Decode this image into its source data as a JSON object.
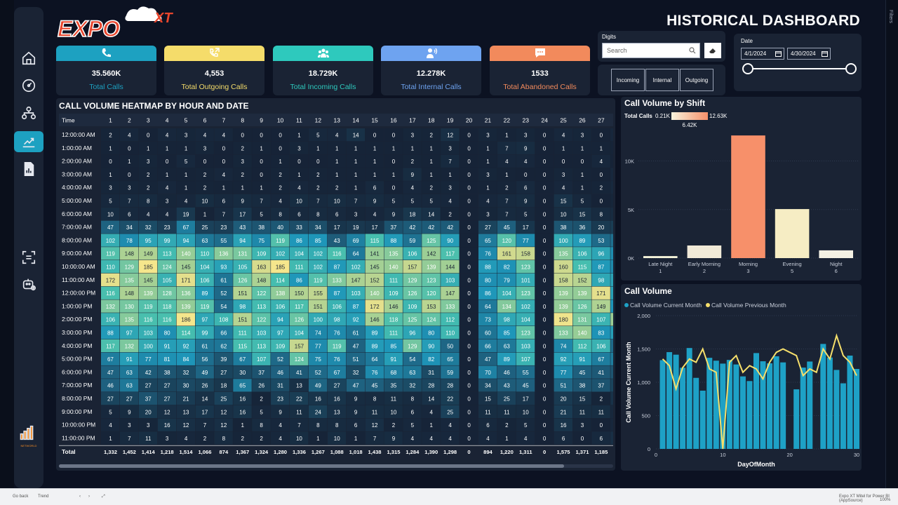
{
  "header": {
    "title": "HISTORICAL DASHBOARD",
    "logo_text": "EXPO",
    "logo_sup": "XT"
  },
  "nav": {
    "items": [
      "home-icon",
      "gauge-icon",
      "org-chart-icon",
      "analytics-icon",
      "report-icon",
      "scan-icon",
      "bot-icon"
    ],
    "brand": "NETWORLD"
  },
  "kpis": [
    {
      "value": "35.560K",
      "label": "Total Calls",
      "color": "#1da1c1",
      "icon": "phone-icon"
    },
    {
      "value": "4,553",
      "label": "Total Outgoing Calls",
      "color": "#f5dc6a",
      "icon": "phone-outgoing-icon"
    },
    {
      "value": "18.729K",
      "label": "Total Incoming Calls",
      "color": "#2ec9bd",
      "icon": "group-icon"
    },
    {
      "value": "12.278K",
      "label": "Total Internal Calls",
      "color": "#6ea3f0",
      "icon": "person-speaking-icon"
    },
    {
      "value": "1533",
      "label": "Total Abandoned Calls",
      "color": "#f28a5c",
      "icon": "chat-icon"
    }
  ],
  "digits": {
    "title": "Digits",
    "search_placeholder": "Search"
  },
  "direction_buttons": [
    "Incoming",
    "Internal",
    "Outgoing"
  ],
  "date_filter": {
    "title": "Date",
    "start": "4/1/2024",
    "end": "4/30/2024"
  },
  "heatmap": {
    "title": "CALL VOLUME HEATMAP BY HOUR AND DATE",
    "corner": "Time",
    "days": [
      "1",
      "2",
      "3",
      "4",
      "5",
      "6",
      "7",
      "8",
      "9",
      "10",
      "11",
      "12",
      "13",
      "14",
      "15",
      "16",
      "17",
      "18",
      "19",
      "20",
      "21",
      "22",
      "23",
      "24",
      "25",
      "26",
      "27",
      "28",
      "29"
    ],
    "rows": [
      {
        "time": "12:00:00 AM",
        "v": [
          "2",
          "4",
          "0",
          "4",
          "3",
          "4",
          "4",
          "0",
          "0",
          "0",
          "1",
          "5",
          "4",
          "14",
          "0",
          "0",
          "3",
          "2",
          "12",
          "0",
          "3",
          "1",
          "3",
          "0",
          "4",
          "3",
          "0",
          "4",
          ""
        ]
      },
      {
        "time": "1:00:00 AM",
        "v": [
          "1",
          "0",
          "1",
          "1",
          "1",
          "3",
          "0",
          "2",
          "1",
          "0",
          "3",
          "1",
          "1",
          "1",
          "1",
          "1",
          "1",
          "1",
          "3",
          "0",
          "1",
          "7",
          "9",
          "0",
          "1",
          "1",
          "1",
          "1",
          ""
        ]
      },
      {
        "time": "2:00:00 AM",
        "v": [
          "0",
          "1",
          "3",
          "0",
          "5",
          "0",
          "0",
          "3",
          "0",
          "1",
          "0",
          "0",
          "1",
          "1",
          "1",
          "0",
          "2",
          "1",
          "7",
          "0",
          "1",
          "4",
          "4",
          "0",
          "0",
          "0",
          "4",
          "0",
          ""
        ]
      },
      {
        "time": "3:00:00 AM",
        "v": [
          "1",
          "0",
          "2",
          "1",
          "1",
          "2",
          "4",
          "2",
          "0",
          "2",
          "1",
          "2",
          "1",
          "1",
          "1",
          "1",
          "9",
          "1",
          "1",
          "0",
          "3",
          "1",
          "0",
          "0",
          "3",
          "1",
          "0",
          "5",
          ""
        ]
      },
      {
        "time": "4:00:00 AM",
        "v": [
          "3",
          "3",
          "2",
          "4",
          "1",
          "2",
          "1",
          "1",
          "1",
          "2",
          "4",
          "2",
          "2",
          "1",
          "6",
          "0",
          "4",
          "2",
          "3",
          "0",
          "1",
          "2",
          "6",
          "0",
          "4",
          "1",
          "2",
          "6",
          ""
        ]
      },
      {
        "time": "5:00:00 AM",
        "v": [
          "5",
          "7",
          "8",
          "3",
          "4",
          "10",
          "6",
          "9",
          "7",
          "4",
          "10",
          "7",
          "10",
          "7",
          "9",
          "5",
          "5",
          "5",
          "4",
          "0",
          "4",
          "7",
          "9",
          "0",
          "15",
          "5",
          "0",
          "3",
          ""
        ]
      },
      {
        "time": "6:00:00 AM",
        "v": [
          "10",
          "6",
          "4",
          "4",
          "19",
          "1",
          "7",
          "17",
          "5",
          "8",
          "6",
          "8",
          "6",
          "3",
          "4",
          "9",
          "18",
          "14",
          "2",
          "0",
          "3",
          "7",
          "5",
          "0",
          "10",
          "15",
          "8",
          "8",
          ""
        ]
      },
      {
        "time": "7:00:00 AM",
        "v": [
          "47",
          "34",
          "32",
          "23",
          "67",
          "25",
          "23",
          "43",
          "38",
          "40",
          "33",
          "34",
          "17",
          "19",
          "17",
          "37",
          "42",
          "42",
          "42",
          "0",
          "27",
          "45",
          "17",
          "0",
          "38",
          "36",
          "20",
          "22",
          ""
        ]
      },
      {
        "time": "8:00:00 AM",
        "v": [
          "102",
          "78",
          "95",
          "99",
          "94",
          "63",
          "55",
          "94",
          "75",
          "119",
          "86",
          "85",
          "43",
          "69",
          "115",
          "88",
          "59",
          "125",
          "90",
          "0",
          "65",
          "120",
          "77",
          "0",
          "100",
          "89",
          "53",
          "57",
          ""
        ]
      },
      {
        "time": "9:00:00 AM",
        "v": [
          "119",
          "148",
          "149",
          "113",
          "140",
          "110",
          "136",
          "131",
          "109",
          "102",
          "104",
          "102",
          "116",
          "64",
          "141",
          "135",
          "106",
          "142",
          "117",
          "0",
          "76",
          "161",
          "158",
          "0",
          "135",
          "106",
          "96",
          "78",
          ""
        ]
      },
      {
        "time": "10:00:00 AM",
        "v": [
          "110",
          "129",
          "185",
          "124",
          "145",
          "104",
          "93",
          "105",
          "163",
          "185",
          "111",
          "102",
          "87",
          "102",
          "145",
          "140",
          "157",
          "139",
          "144",
          "0",
          "88",
          "82",
          "123",
          "0",
          "160",
          "115",
          "87",
          "76",
          ""
        ]
      },
      {
        "time": "11:00:00 AM",
        "v": [
          "172",
          "135",
          "145",
          "105",
          "171",
          "106",
          "61",
          "126",
          "148",
          "114",
          "86",
          "119",
          "133",
          "147",
          "152",
          "111",
          "129",
          "123",
          "103",
          "0",
          "80",
          "79",
          "101",
          "0",
          "158",
          "152",
          "98",
          "94",
          ""
        ]
      },
      {
        "time": "12:00:00 PM",
        "v": [
          "116",
          "148",
          "139",
          "128",
          "136",
          "89",
          "52",
          "151",
          "122",
          "138",
          "150",
          "155",
          "87",
          "103",
          "140",
          "109",
          "126",
          "120",
          "147",
          "0",
          "86",
          "104",
          "123",
          "0",
          "139",
          "139",
          "171",
          "93",
          ""
        ]
      },
      {
        "time": "1:00:00 PM",
        "v": [
          "132",
          "130",
          "119",
          "118",
          "139",
          "119",
          "54",
          "98",
          "113",
          "106",
          "117",
          "151",
          "106",
          "87",
          "172",
          "146",
          "109",
          "153",
          "133",
          "0",
          "64",
          "134",
          "102",
          "0",
          "139",
          "126",
          "149",
          "84",
          ""
        ]
      },
      {
        "time": "2:00:00 PM",
        "v": [
          "106",
          "135",
          "116",
          "116",
          "186",
          "97",
          "108",
          "151",
          "122",
          "94",
          "126",
          "100",
          "98",
          "92",
          "146",
          "118",
          "125",
          "124",
          "112",
          "0",
          "73",
          "98",
          "104",
          "0",
          "180",
          "131",
          "107",
          "142",
          ""
        ]
      },
      {
        "time": "3:00:00 PM",
        "v": [
          "88",
          "97",
          "103",
          "80",
          "114",
          "99",
          "66",
          "111",
          "103",
          "97",
          "104",
          "74",
          "76",
          "61",
          "89",
          "111",
          "96",
          "80",
          "110",
          "0",
          "60",
          "85",
          "123",
          "0",
          "133",
          "140",
          "83",
          "91",
          ""
        ]
      },
      {
        "time": "4:00:00 PM",
        "v": [
          "117",
          "132",
          "100",
          "91",
          "92",
          "61",
          "62",
          "115",
          "113",
          "109",
          "157",
          "77",
          "119",
          "47",
          "89",
          "85",
          "129",
          "90",
          "50",
          "0",
          "66",
          "63",
          "103",
          "0",
          "74",
          "112",
          "106",
          "54",
          ""
        ]
      },
      {
        "time": "5:00:00 PM",
        "v": [
          "67",
          "91",
          "77",
          "81",
          "84",
          "56",
          "39",
          "67",
          "107",
          "52",
          "124",
          "75",
          "76",
          "51",
          "64",
          "91",
          "54",
          "82",
          "65",
          "0",
          "47",
          "89",
          "107",
          "0",
          "92",
          "91",
          "67",
          "66",
          ""
        ]
      },
      {
        "time": "6:00:00 PM",
        "v": [
          "47",
          "63",
          "42",
          "38",
          "32",
          "49",
          "27",
          "30",
          "37",
          "46",
          "41",
          "52",
          "67",
          "32",
          "76",
          "68",
          "63",
          "31",
          "59",
          "0",
          "70",
          "46",
          "55",
          "0",
          "77",
          "45",
          "41",
          "38",
          ""
        ]
      },
      {
        "time": "7:00:00 PM",
        "v": [
          "46",
          "63",
          "27",
          "27",
          "30",
          "26",
          "18",
          "65",
          "26",
          "31",
          "13",
          "49",
          "27",
          "47",
          "45",
          "35",
          "32",
          "28",
          "28",
          "0",
          "34",
          "43",
          "45",
          "0",
          "51",
          "38",
          "37",
          "27",
          ""
        ]
      },
      {
        "time": "8:00:00 PM",
        "v": [
          "27",
          "27",
          "37",
          "27",
          "21",
          "14",
          "25",
          "16",
          "2",
          "23",
          "22",
          "16",
          "16",
          "9",
          "8",
          "11",
          "8",
          "14",
          "22",
          "0",
          "15",
          "25",
          "17",
          "0",
          "20",
          "15",
          "2",
          "15",
          ""
        ]
      },
      {
        "time": "9:00:00 PM",
        "v": [
          "5",
          "9",
          "20",
          "12",
          "13",
          "17",
          "12",
          "16",
          "5",
          "9",
          "11",
          "24",
          "13",
          "9",
          "11",
          "10",
          "6",
          "4",
          "25",
          "0",
          "11",
          "11",
          "10",
          "0",
          "21",
          "11",
          "11",
          "5",
          ""
        ]
      },
      {
        "time": "10:00:00 PM",
        "v": [
          "4",
          "3",
          "3",
          "16",
          "12",
          "7",
          "12",
          "1",
          "8",
          "4",
          "7",
          "8",
          "8",
          "6",
          "12",
          "2",
          "5",
          "1",
          "4",
          "0",
          "6",
          "2",
          "5",
          "0",
          "16",
          "3",
          "0",
          "4",
          ""
        ]
      },
      {
        "time": "11:00:00 PM",
        "v": [
          "1",
          "7",
          "11",
          "3",
          "4",
          "2",
          "8",
          "2",
          "2",
          "4",
          "10",
          "1",
          "10",
          "1",
          "7",
          "9",
          "4",
          "4",
          "4",
          "0",
          "4",
          "1",
          "4",
          "0",
          "6",
          "0",
          "6",
          "12",
          ""
        ]
      }
    ],
    "total_label": "Total",
    "totals": [
      "1,332",
      "1,452",
      "1,414",
      "1,218",
      "1,514",
      "1,066",
      "874",
      "1,367",
      "1,324",
      "1,280",
      "1,336",
      "1,267",
      "1,088",
      "1,018",
      "1,438",
      "1,315",
      "1,284",
      "1,390",
      "1,298",
      "0",
      "894",
      "1,220",
      "1,311",
      "0",
      "1,575",
      "1,371",
      "1,185",
      "984",
      "1,4"
    ]
  },
  "chart_data": [
    {
      "type": "bar",
      "title": "Call Volume by Shift",
      "legend_label": "Total Calls",
      "legend_min": "0.21K",
      "legend_max": "12.63K",
      "legend_mid": "6.42K",
      "categories": [
        "Late Night",
        "Early Morning",
        "Morning",
        "Evening",
        "Night"
      ],
      "category_ids": [
        "1",
        "2",
        "3",
        "5",
        "6"
      ],
      "values": [
        210,
        1300,
        12630,
        5050,
        800
      ],
      "colors": [
        "#f3f2d8",
        "#f1ead8",
        "#f7906a",
        "#f6edc4",
        "#f4f1e4"
      ],
      "yticks": [
        "0K",
        "5K",
        "10K"
      ],
      "ylim": [
        0,
        13000
      ]
    },
    {
      "type": "bar+line",
      "title": "Call Volume",
      "series": [
        {
          "name": "Call Volume Current Month",
          "color": "#1ea1c6",
          "x": [
            1,
            2,
            3,
            4,
            5,
            6,
            7,
            8,
            9,
            10,
            11,
            12,
            13,
            14,
            15,
            16,
            17,
            18,
            19,
            20,
            21,
            22,
            23,
            24,
            25,
            26,
            27,
            28,
            29,
            30
          ],
          "values": [
            1332,
            1452,
            1414,
            1218,
            1514,
            1066,
            874,
            1367,
            1324,
            1280,
            1336,
            1267,
            1088,
            1018,
            1438,
            1315,
            1284,
            1390,
            1298,
            0,
            894,
            1220,
            1311,
            0,
            1575,
            1371,
            1185,
            984,
            1400,
            1200
          ]
        },
        {
          "name": "Call Volume Previous Month",
          "color": "#f6df6b",
          "x": [
            1,
            2,
            3,
            4,
            5,
            6,
            7,
            8,
            9,
            10,
            11,
            12,
            13,
            14,
            15,
            16,
            17,
            18,
            19,
            20,
            21,
            22,
            23,
            24,
            25,
            26,
            27,
            28,
            29,
            30
          ],
          "values": [
            1350,
            1250,
            900,
            1220,
            1350,
            1300,
            1500,
            1200,
            1150,
            0,
            1300,
            1400,
            1150,
            1250,
            1200,
            1050,
            1300,
            1450,
            1500,
            1450,
            1400,
            1100,
            1200,
            1150,
            1500,
            1350,
            1700,
            1400,
            1300,
            1100
          ]
        }
      ],
      "xlabel": "DayOfMonth",
      "ylabel": "Call Volume Current Month",
      "yticks": [
        "0",
        "500",
        "1,000",
        "1,500",
        "2,000"
      ],
      "xticks": [
        "0",
        "10",
        "20",
        "30"
      ],
      "ylim": [
        0,
        2000
      ],
      "xlim": [
        0,
        30
      ]
    }
  ],
  "status": {
    "left1": "Go back",
    "left2": "Trend",
    "right": "Expo XT Mitel for Power BI (AppSource)",
    "zoom": "100%"
  },
  "right_panel": "Filters"
}
